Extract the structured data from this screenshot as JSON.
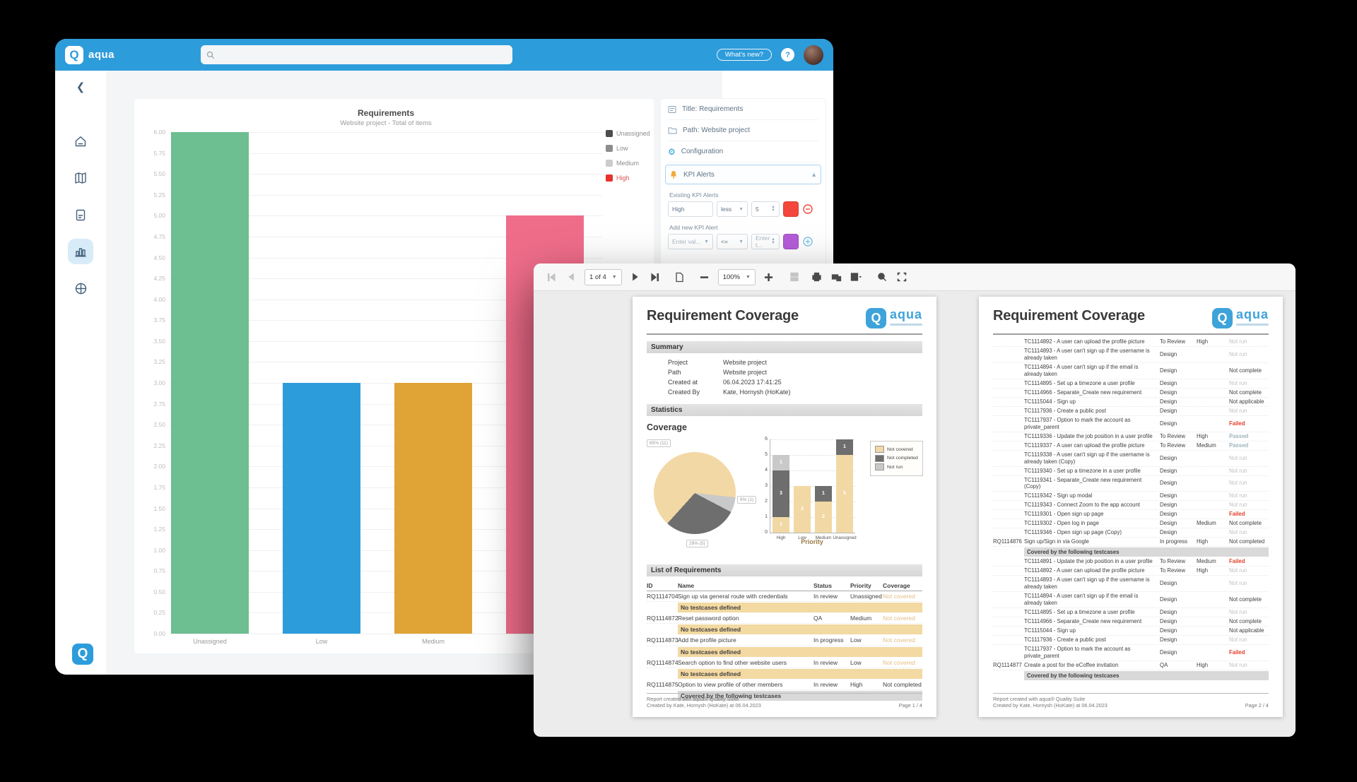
{
  "back_window": {
    "header": {
      "brand": "aqua",
      "search_placeholder": "",
      "whats_new_label": "What's new?",
      "help_label": "?"
    },
    "panel": {
      "title_row": "Title: Requirements",
      "path_row": "Path: Website project",
      "configuration_row": "Configuration",
      "kpi_alerts_row": "KPI Alerts",
      "existing_label": "Existing KPI Alerts",
      "existing_alert": {
        "name": "High",
        "operator": "less",
        "threshold": "5",
        "color": "#F4473C"
      },
      "add_label": "Add new KPI Alert",
      "new_alert": {
        "name_placeholder": "Enter val...",
        "operator": "<=",
        "threshold_placeholder": "Enter t...",
        "color": "#B55CD9"
      }
    }
  },
  "front_window": {
    "toolbar": {
      "page_indicator": "1 of 4",
      "zoom_level": "100%"
    },
    "report": {
      "title": "Requirement Coverage",
      "brand": "aqua",
      "summary_heading": "Summary",
      "summary_rows": [
        {
          "label": "Project",
          "value": "Website project"
        },
        {
          "label": "Path",
          "value": "Website project"
        },
        {
          "label": "Created at",
          "value": "06.04.2023 17:41:25"
        },
        {
          "label": "Created By",
          "value": "Kate, Hornysh (HoKate)"
        }
      ],
      "statistics_heading": "Statistics",
      "coverage_heading": "Coverage",
      "list_heading": "List of Requirements",
      "table_headers": [
        "ID",
        "Name",
        "Status",
        "Priority",
        "Coverage"
      ],
      "page1_rows": [
        {
          "t": "req",
          "id": "RQ1114704",
          "name": "Sign up via general route with credentials",
          "status": "In review",
          "priority": "Unassigned",
          "cov": "Not covered"
        },
        {
          "t": "note-tan",
          "text": "No testcases defined"
        },
        {
          "t": "req",
          "id": "RQ1114872",
          "name": "Reset password option",
          "status": "QA",
          "priority": "Medium",
          "cov": "Not covered"
        },
        {
          "t": "note-tan",
          "text": "No testcases defined"
        },
        {
          "t": "req",
          "id": "RQ1114873",
          "name": "Add the profile picture",
          "status": "In progress",
          "priority": "Low",
          "cov": "Not covered"
        },
        {
          "t": "note-tan",
          "text": "No testcases defined"
        },
        {
          "t": "req",
          "id": "RQ1114874",
          "name": "Search option to find other website users",
          "status": "In review",
          "priority": "Low",
          "cov": "Not covered"
        },
        {
          "t": "note-tan",
          "text": "No testcases defined"
        },
        {
          "t": "req",
          "id": "RQ1114875",
          "name": "Option to view profile of other members",
          "status": "In review",
          "priority": "High",
          "cov": "Not completed"
        },
        {
          "t": "note-gray",
          "text": "Covered by the following testcases"
        }
      ],
      "page2_rows": [
        {
          "t": "tc",
          "name": "TC1114892 - A user can upload the profile picture",
          "status": "To Review",
          "priority": "High",
          "cov": "Not run"
        },
        {
          "t": "tc",
          "name": "TC1114893 - A user can't sign up if the username is already taken",
          "status": "Design",
          "priority": "",
          "cov": "Not run"
        },
        {
          "t": "tc",
          "name": "TC1114894 - A user can't sign up if the email is already taken",
          "status": "Design",
          "priority": "",
          "cov": "Not complete"
        },
        {
          "t": "tc",
          "name": "TC1114895 - Set up a timezone a user profile",
          "status": "Design",
          "priority": "",
          "cov": "Not run"
        },
        {
          "t": "tc",
          "name": "TC1114966 - Separate_Create new requirement",
          "status": "Design",
          "priority": "",
          "cov": "Not complete"
        },
        {
          "t": "tc",
          "name": "TC1115044 - Sign up",
          "status": "Design",
          "priority": "",
          "cov": "Not applicable"
        },
        {
          "t": "tc",
          "name": "TC1117936 - Create a public post",
          "status": "Design",
          "priority": "",
          "cov": "Not run"
        },
        {
          "t": "tc",
          "name": "TC1117937 - Option to mark the account as private_parent",
          "status": "Design",
          "priority": "",
          "cov": "Failed"
        },
        {
          "t": "tc",
          "name": "TC1119336 - Update the job position in a user profile",
          "status": "To Review",
          "priority": "High",
          "cov": "Passed"
        },
        {
          "t": "tc",
          "name": "TC1119337 - A user can upload the profile picture",
          "status": "To Review",
          "priority": "Medium",
          "cov": "Passed"
        },
        {
          "t": "tc",
          "name": "TC1119338 - A user can't sign up if the username is already taken (Copy)",
          "status": "Design",
          "priority": "",
          "cov": "Not run"
        },
        {
          "t": "tc",
          "name": "TC1119340 - Set up a timezone in a user profile",
          "status": "Design",
          "priority": "",
          "cov": "Not run"
        },
        {
          "t": "tc",
          "name": "TC1119341 - Separate_Create new requirement (Copy)",
          "status": "Design",
          "priority": "",
          "cov": "Not run"
        },
        {
          "t": "tc",
          "name": "TC1119342 - Sign up modal",
          "status": "Design",
          "priority": "",
          "cov": "Not run"
        },
        {
          "t": "tc",
          "name": "TC1119343 - Connect Zoom to the app account",
          "status": "Design",
          "priority": "",
          "cov": "Not run"
        },
        {
          "t": "tc",
          "name": "TC1119301 - Open sign up page",
          "status": "Design",
          "priority": "",
          "cov": "Failed"
        },
        {
          "t": "tc",
          "name": "TC1119302 - Open log in page",
          "status": "Design",
          "priority": "Medium",
          "cov": "Not complete"
        },
        {
          "t": "tc",
          "name": "TC1119346 - Open sign up page (Copy)",
          "status": "Design",
          "priority": "",
          "cov": "Not run"
        },
        {
          "t": "req",
          "id": "RQ1114876",
          "name": "Sign up/Sign in via Google",
          "status": "In progress",
          "priority": "High",
          "cov": "Not completed"
        },
        {
          "t": "note-gray",
          "text": "Covered by the following testcases"
        },
        {
          "t": "tc",
          "name": "TC1114891 - Update the job position in a user profile",
          "status": "To Review",
          "priority": "Medium",
          "cov": "Failed"
        },
        {
          "t": "tc",
          "name": "TC1114892 - A user can upload the profile picture",
          "status": "To Review",
          "priority": "High",
          "cov": "Not run"
        },
        {
          "t": "tc",
          "name": "TC1114893 - A user can't sign up if the username is already taken",
          "status": "Design",
          "priority": "",
          "cov": "Not run"
        },
        {
          "t": "tc",
          "name": "TC1114894 - A user can't sign up if the email is already taken",
          "status": "Design",
          "priority": "",
          "cov": "Not complete"
        },
        {
          "t": "tc",
          "name": "TC1114895 - Set up a timezone a user profile",
          "status": "Design",
          "priority": "",
          "cov": "Not run"
        },
        {
          "t": "tc",
          "name": "TC1114966 - Separate_Create new requirement",
          "status": "Design",
          "priority": "",
          "cov": "Not complete"
        },
        {
          "t": "tc",
          "name": "TC1115044 - Sign up",
          "status": "Design",
          "priority": "",
          "cov": "Not applicable"
        },
        {
          "t": "tc",
          "name": "TC1117936 - Create a public post",
          "status": "Design",
          "priority": "",
          "cov": "Not run"
        },
        {
          "t": "tc",
          "name": "TC1117937 - Option to mark the account as private_parent",
          "status": "Design",
          "priority": "",
          "cov": "Failed"
        },
        {
          "t": "req",
          "id": "RQ1114877",
          "name": "Create a post for the eCoffee invitation",
          "status": "QA",
          "priority": "High",
          "cov": "Not run"
        },
        {
          "t": "note-gray",
          "text": "Covered by the following testcases"
        }
      ],
      "footer_line1": "Report created with aqua® Quality Suite",
      "footer_line2": "Created by Kate, Hornysh (HoKate) at 06.04.2023",
      "page1_number": "Page 1 / 4",
      "page2_number": "Page 2 / 4"
    }
  },
  "chart_data": [
    {
      "id": "requirements-by-priority",
      "type": "bar",
      "title": "Requirements",
      "subtitle": "Website project - Total of items",
      "categories": [
        "Unassigned",
        "Low",
        "Medium",
        "High"
      ],
      "values": [
        6,
        3,
        3,
        5
      ],
      "bar_colors": [
        "#6DBE91",
        "#2D9CDB",
        "#E0A335",
        "#F06D8A"
      ],
      "ylim": [
        0,
        6
      ],
      "ytick_step": 0.25,
      "grid": true,
      "legend_position": "right",
      "legend": [
        {
          "label": "Unassigned",
          "color": "#4D4D4D",
          "text_color": "#8C8C8C"
        },
        {
          "label": "Low",
          "color": "#8C8C8C",
          "text_color": "#8C8C8C"
        },
        {
          "label": "Medium",
          "color": "#CCCCCC",
          "text_color": "#8C8C8C"
        },
        {
          "label": "High",
          "color": "#E8312A",
          "text_color": "#D9534F"
        }
      ]
    },
    {
      "id": "coverage-pie",
      "type": "pie",
      "title": "Coverage",
      "slices": [
        {
          "label": "65% (11)",
          "value": 65,
          "count": 11,
          "name": "Not covered",
          "color": "#F2D8A4"
        },
        {
          "label": "29% (5)",
          "value": 29,
          "count": 5,
          "name": "Not completed",
          "color": "#6E6E6E"
        },
        {
          "label": "6% (1)",
          "value": 6,
          "count": 1,
          "name": "Not run",
          "color": "#C9C9C9"
        }
      ]
    },
    {
      "id": "coverage-by-priority",
      "type": "bar",
      "stacked": true,
      "categories": [
        "High",
        "Low",
        "Medium",
        "Unassigned"
      ],
      "xlabel": "Priority",
      "ylim": [
        0,
        6
      ],
      "yticks": [
        0,
        1,
        2,
        3,
        4,
        5,
        6
      ],
      "legend_position": "right",
      "series": [
        {
          "name": "Not covered",
          "color": "#F2D8A4",
          "values": [
            1,
            3,
            2,
            5
          ]
        },
        {
          "name": "Not completed",
          "color": "#6E6E6E",
          "values": [
            3,
            0,
            1,
            1
          ]
        },
        {
          "name": "Not run",
          "color": "#C9C9C9",
          "values": [
            1,
            0,
            0,
            0
          ]
        }
      ]
    }
  ]
}
